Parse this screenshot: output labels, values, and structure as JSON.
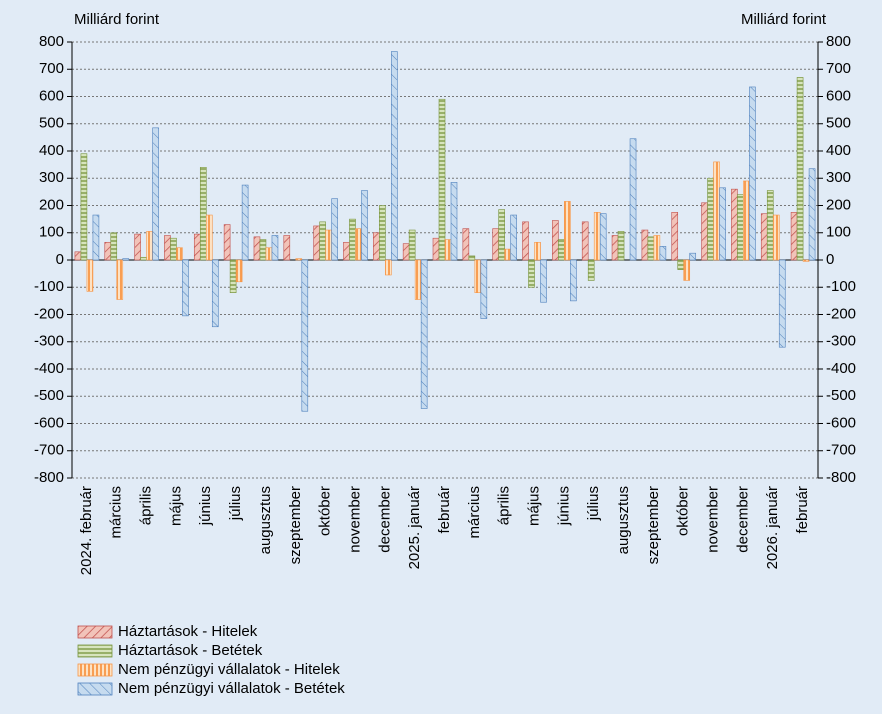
{
  "chart_data": {
    "type": "bar",
    "y_label": "Milliárd forint",
    "y2_label": "Milliárd forint",
    "categories": [
      "2024. február",
      "március",
      "április",
      "május",
      "június",
      "július",
      "augusztus",
      "szeptember",
      "október",
      "november",
      "december",
      "2025. január",
      "február",
      "március",
      "április",
      "május",
      "június",
      "július",
      "augusztus",
      "szeptember",
      "október",
      "november",
      "december",
      "2026. január",
      "február"
    ],
    "series": [
      {
        "name": "Háztartások - Hitelek",
        "color": "#c0504d",
        "values": [
          30,
          65,
          95,
          90,
          95,
          130,
          85,
          90,
          125,
          65,
          100,
          60,
          80,
          115,
          115,
          140,
          145,
          140,
          90,
          110,
          175,
          210,
          260,
          170,
          175
        ]
      },
      {
        "name": "Háztartások - Betétek",
        "color": "#77933c",
        "values": [
          390,
          100,
          10,
          80,
          340,
          -120,
          75,
          0,
          140,
          150,
          200,
          110,
          590,
          15,
          185,
          -100,
          75,
          -75,
          105,
          85,
          -35,
          300,
          240,
          255,
          670
        ]
      },
      {
        "name": "Nem pénzügyi vállalatok - Hitelek",
        "color": "#f79646",
        "values": [
          -115,
          -145,
          105,
          45,
          165,
          -80,
          45,
          5,
          110,
          115,
          -55,
          -145,
          75,
          -120,
          40,
          65,
          215,
          175,
          0,
          90,
          -75,
          360,
          290,
          165,
          -5
        ]
      },
      {
        "name": "Nem pénzügyi vállalatok - Betétek",
        "color": "#4f81bd",
        "values": [
          165,
          5,
          485,
          -205,
          -245,
          275,
          90,
          -555,
          225,
          255,
          765,
          -545,
          285,
          -215,
          165,
          -155,
          -150,
          170,
          445,
          50,
          25,
          265,
          635,
          -320,
          335
        ]
      }
    ],
    "ylim": [
      -800,
      800
    ],
    "yticks": [
      -800,
      -700,
      -600,
      -500,
      -400,
      -300,
      -200,
      -100,
      0,
      100,
      200,
      300,
      400,
      500,
      600,
      700,
      800
    ],
    "y2lim": [
      -800,
      800
    ],
    "y2ticks": [
      -800,
      -700,
      -600,
      -500,
      -400,
      -300,
      -200,
      -100,
      0,
      100,
      200,
      300,
      400,
      500,
      600,
      700,
      800
    ],
    "grid": true,
    "legend": "bottom"
  }
}
